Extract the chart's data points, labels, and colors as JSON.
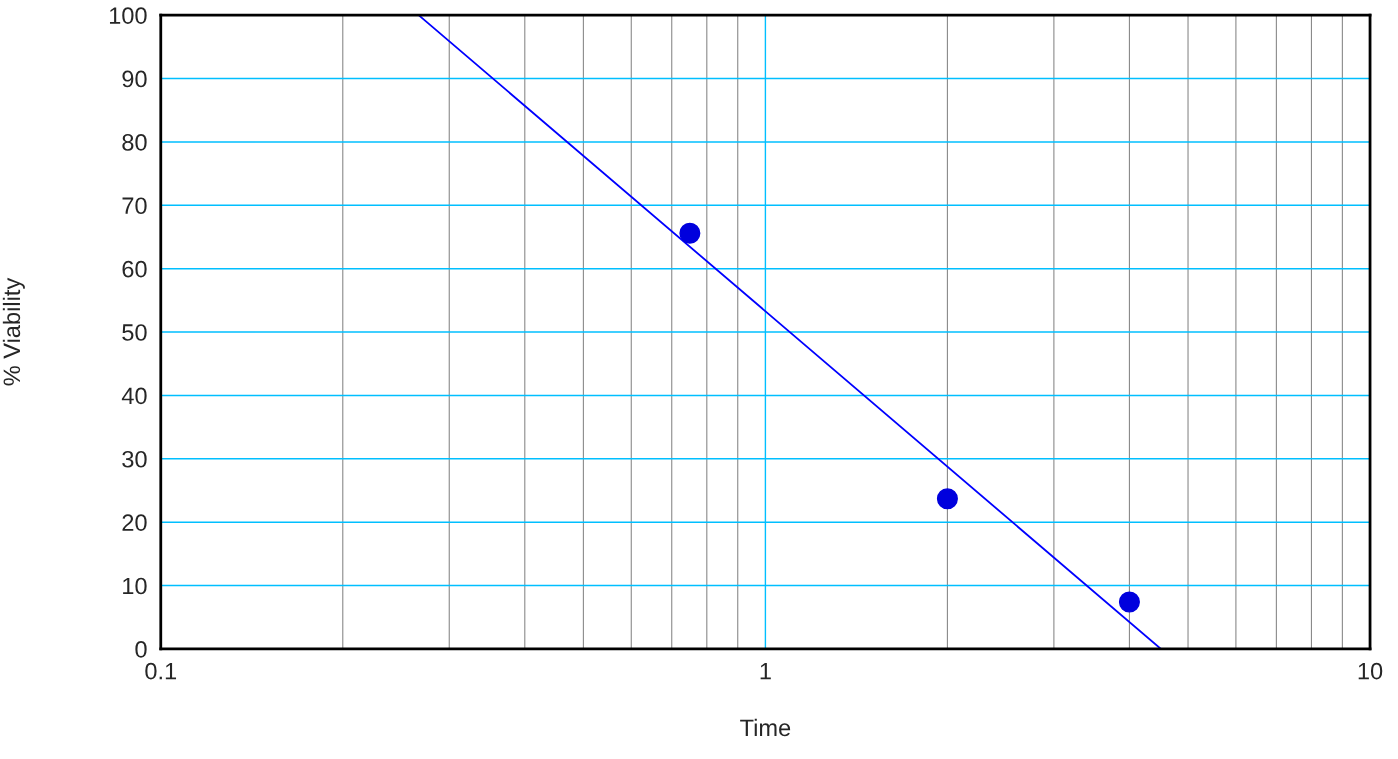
{
  "chart_data": {
    "type": "scatter",
    "xlabel": "Time",
    "ylabel": "% Viability",
    "log": "x",
    "xlim": [
      0.1,
      10
    ],
    "xticks": [
      0.1,
      1,
      10
    ],
    "ylim": [
      0,
      100
    ],
    "yticks": [
      0,
      10,
      20,
      30,
      40,
      50,
      60,
      70,
      80,
      90,
      100
    ],
    "grid": true,
    "series": [
      {
        "marker": "circle",
        "color": "#0000dd",
        "x": [
          0.75,
          2,
          4
        ],
        "values": [
          65.6,
          23.7,
          7.4
        ]
      },
      {
        "type": "line",
        "color": "#0000ff",
        "x": [
          0.267,
          4.51
        ],
        "values": [
          100,
          0
        ],
        "marker": "none",
        "line_style": "solid"
      }
    ]
  }
}
